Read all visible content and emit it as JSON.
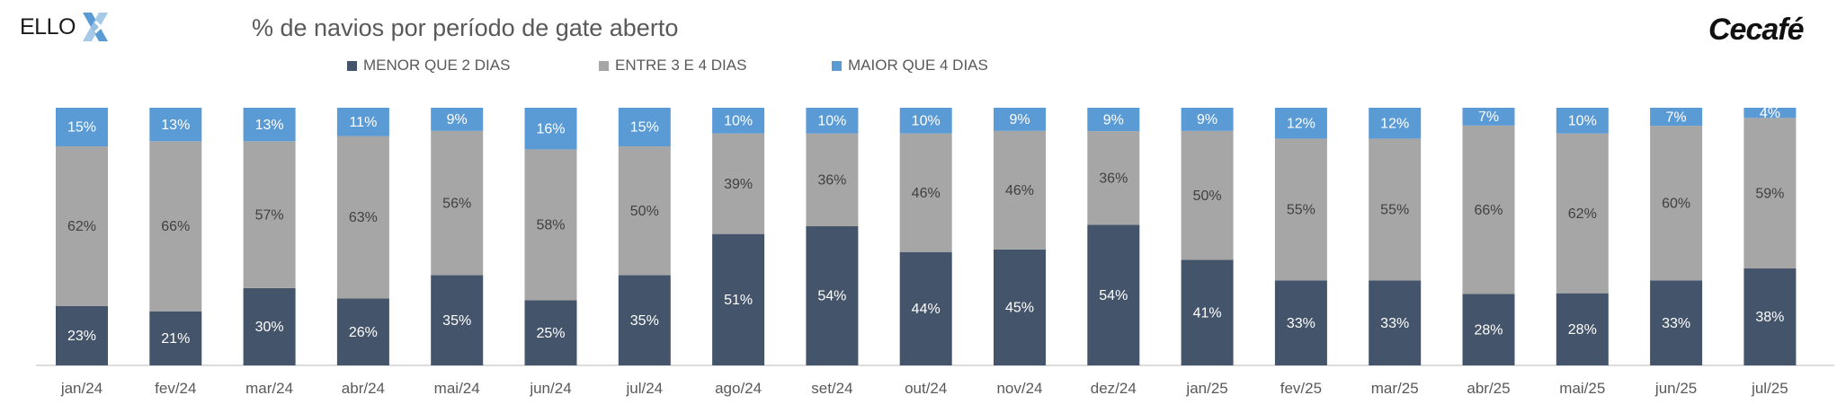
{
  "header": {
    "logo_left_text": "ELLO",
    "logo_right_text": "Cecafé",
    "title": "% de navios por período de gate aberto"
  },
  "colors": {
    "menor": "#44546a",
    "entre": "#a6a6a6",
    "maior": "#5b9bd5",
    "axis": "#d0d0d0"
  },
  "chart_data": {
    "type": "bar",
    "stacked": true,
    "title": "% de navios por período de gate aberto",
    "legend_position": "top",
    "grid": false,
    "categories": [
      "jan/24",
      "fev/24",
      "mar/24",
      "abr/24",
      "mai/24",
      "jun/24",
      "jul/24",
      "ago/24",
      "set/24",
      "out/24",
      "nov/24",
      "dez/24",
      "jan/25",
      "fev/25",
      "mar/25",
      "abr/25",
      "mai/25",
      "jun/25",
      "jul/25"
    ],
    "series": [
      {
        "name": "MENOR QUE 2 DIAS",
        "values": [
          23,
          21,
          30,
          26,
          35,
          25,
          35,
          51,
          54,
          44,
          45,
          54,
          41,
          33,
          33,
          28,
          28,
          33,
          38
        ]
      },
      {
        "name": "ENTRE 3 E 4 DIAS",
        "values": [
          62,
          66,
          57,
          63,
          56,
          58,
          50,
          39,
          36,
          46,
          46,
          36,
          50,
          55,
          55,
          66,
          62,
          60,
          59
        ]
      },
      {
        "name": "MAIOR QUE 4 DIAS",
        "values": [
          15,
          13,
          13,
          11,
          9,
          16,
          15,
          10,
          10,
          10,
          9,
          9,
          9,
          12,
          12,
          7,
          10,
          7,
          4
        ]
      }
    ],
    "value_suffix": "%"
  }
}
